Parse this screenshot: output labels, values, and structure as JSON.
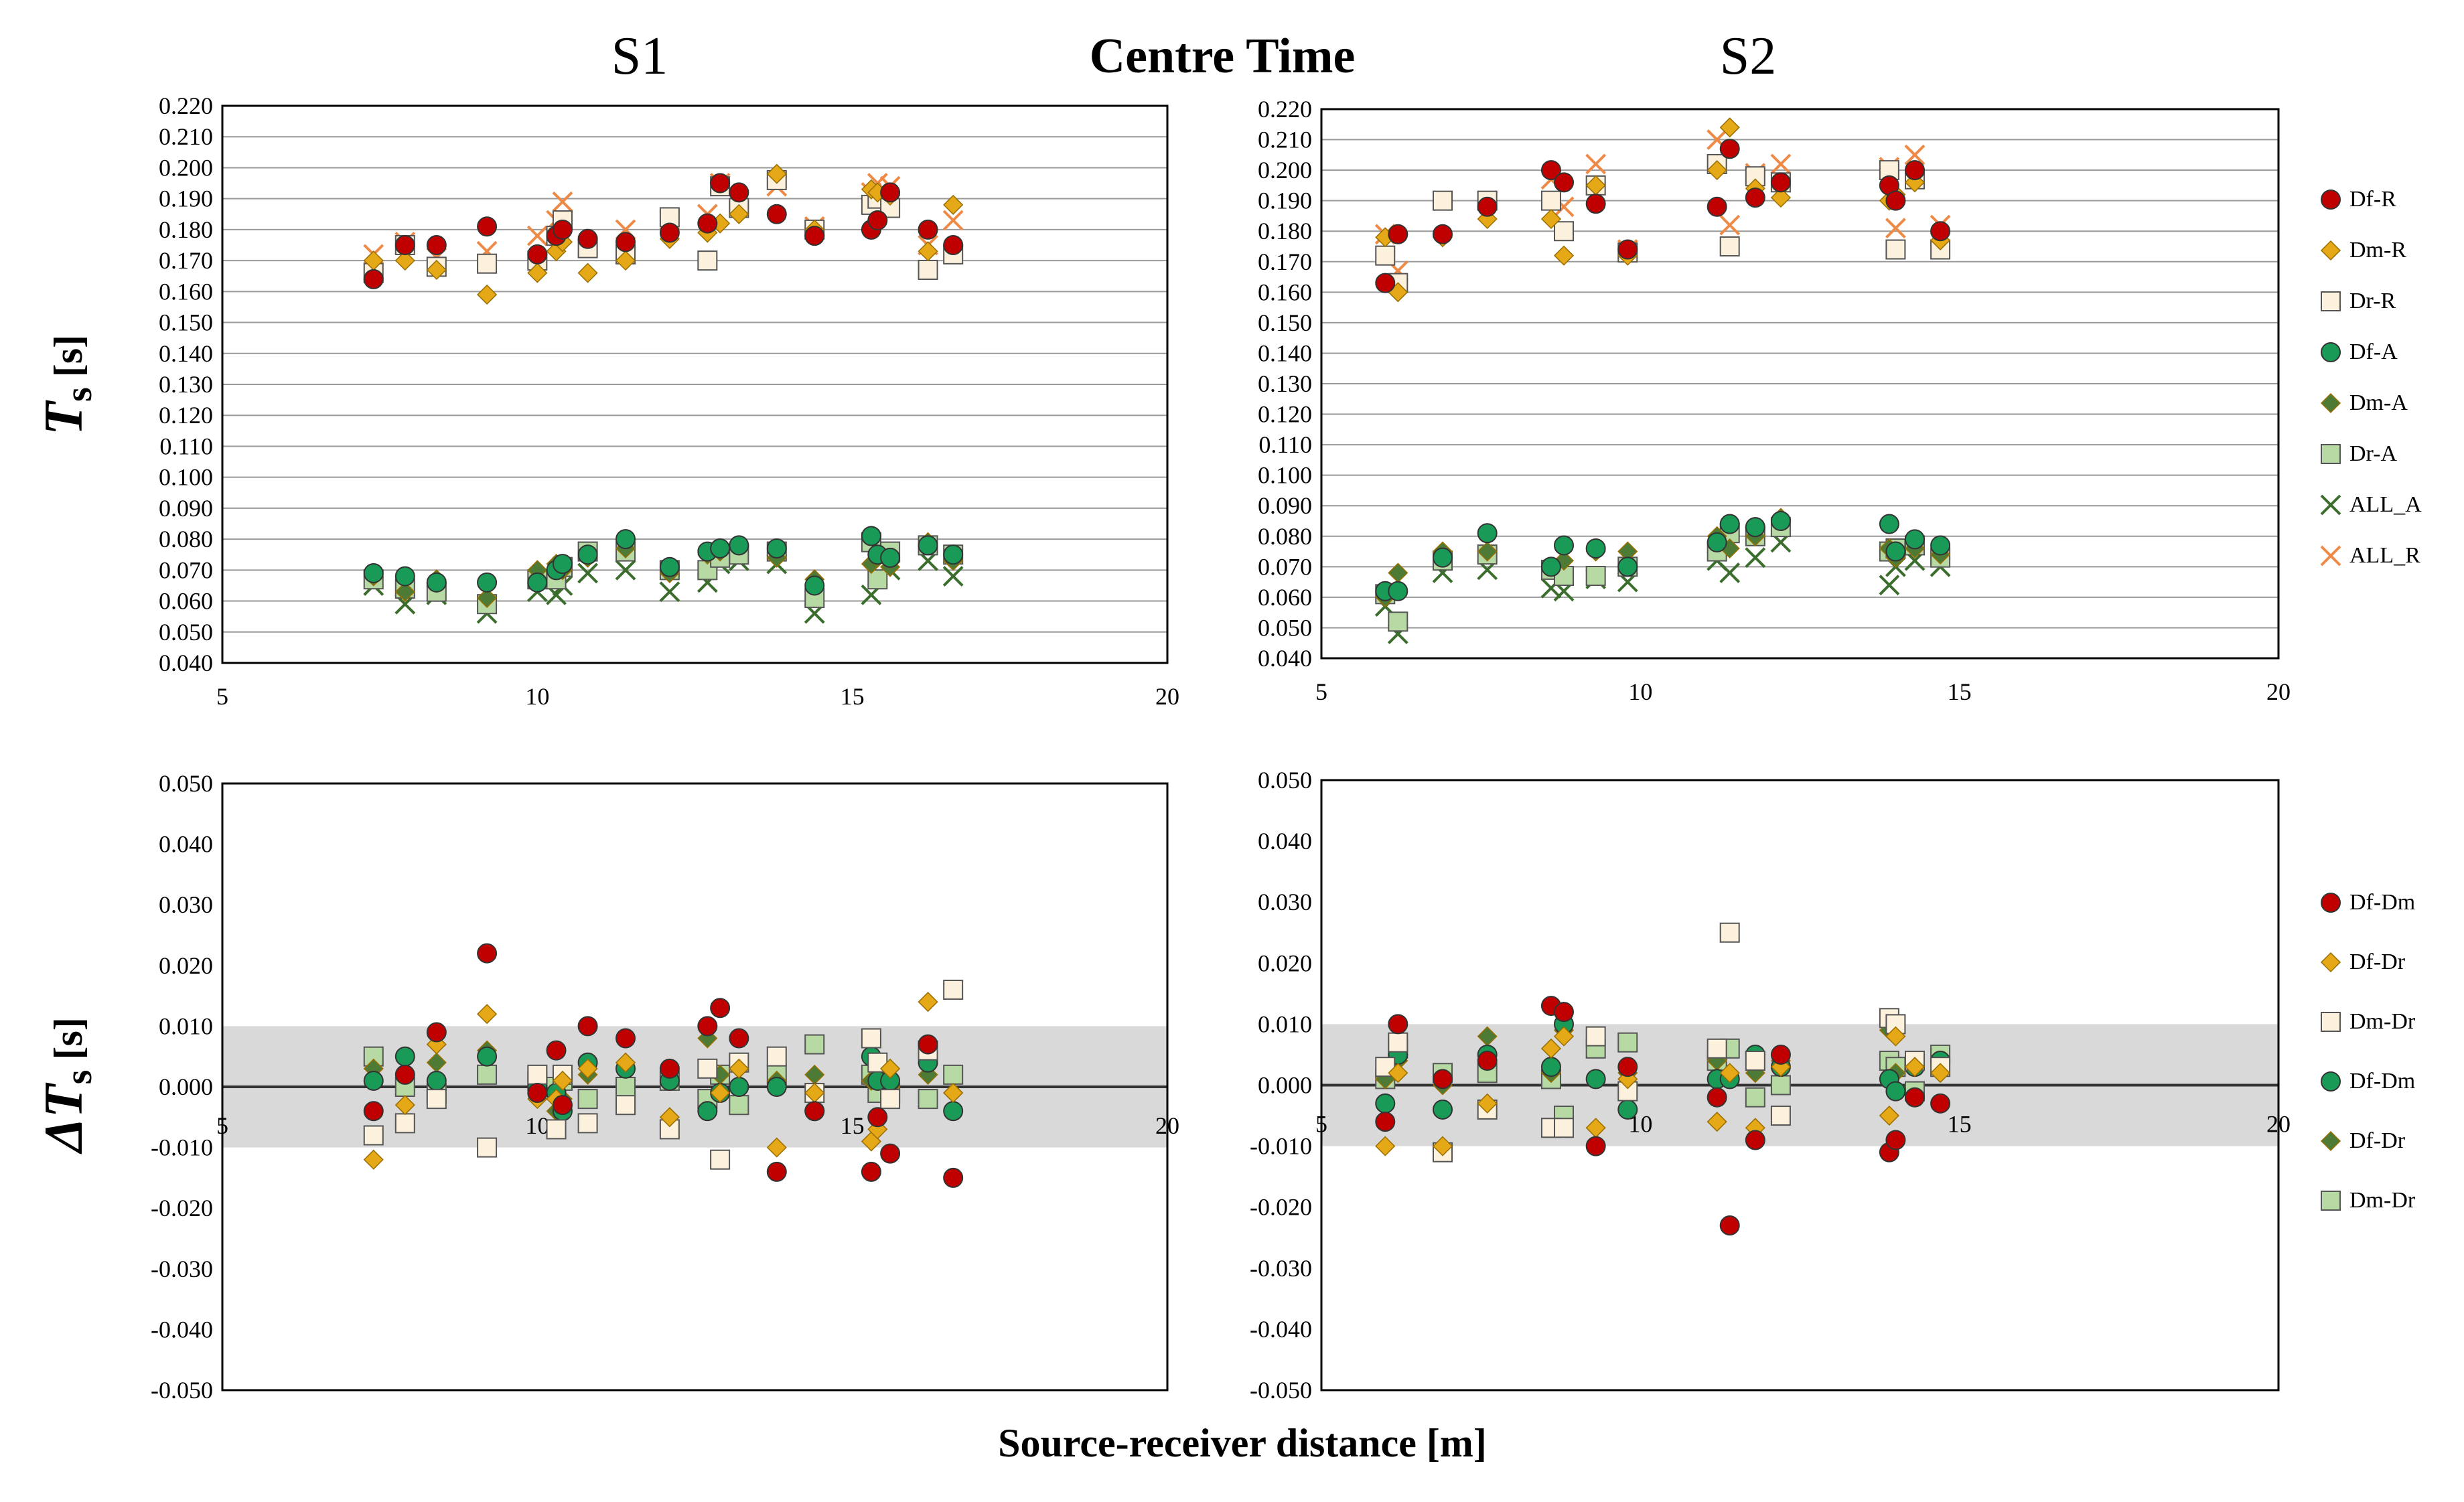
{
  "figure": {
    "main_title": "Centre Time",
    "panel_titles": [
      "S1",
      "S2"
    ],
    "top_ylabel_main": "T",
    "top_ylabel_sub": "s",
    "top_ylabel_unit": " [s]",
    "bottom_ylabel_main": "ΔT",
    "bottom_ylabel_sub": "s",
    "bottom_ylabel_unit": " [s]",
    "xlabel": "Source-receiver distance [m]"
  },
  "colors": {
    "Df": "#c00000",
    "Dm": "#e5a817",
    "Dr": "#fbf1dc",
    "Df_A": "#1a9a57",
    "Dm_A": "#4d7a35",
    "Dr_A": "#b7d9a4",
    "ALL_A": "#3b6e2c",
    "ALL_R": "#ee8a46",
    "band": "#d9d9d9"
  },
  "legend_top": [
    {
      "label": "Df-R",
      "marker": "circle",
      "color": "#c00000"
    },
    {
      "label": "Dm-R",
      "marker": "diamond",
      "color": "#e5a817"
    },
    {
      "label": "Dr-R",
      "marker": "square",
      "color": "#fbf1dc"
    },
    {
      "label": "Df-A",
      "marker": "circle",
      "color": "#1a9a57"
    },
    {
      "label": "Dm-A",
      "marker": "diamond",
      "color": "#4d7a35"
    },
    {
      "label": "Dr-A",
      "marker": "square",
      "color": "#b7d9a4"
    },
    {
      "label": "ALL_A",
      "marker": "x",
      "color": "#3b6e2c"
    },
    {
      "label": "ALL_R",
      "marker": "x",
      "color": "#ee8a46"
    }
  ],
  "legend_bottom": [
    {
      "label": "Df-Dm",
      "marker": "circle",
      "color": "#c00000"
    },
    {
      "label": "Df-Dr",
      "marker": "diamond",
      "color": "#e5a817"
    },
    {
      "label": "Dm-Dr",
      "marker": "square",
      "color": "#fbf1dc"
    },
    {
      "label": "Df-Dm",
      "marker": "circle",
      "color": "#1a9a57"
    },
    {
      "label": "Df-Dr",
      "marker": "diamond",
      "color": "#4d7a35"
    },
    {
      "label": "Dm-Dr",
      "marker": "square",
      "color": "#b7d9a4"
    }
  ],
  "chart_data": [
    {
      "panel": "S1-top",
      "type": "scatter",
      "xlim": [
        5,
        20
      ],
      "ylim": [
        0.04,
        0.22
      ],
      "xticks": [
        "5",
        "10",
        "15",
        "20"
      ],
      "yticks": [
        "0.040",
        "0.050",
        "0.060",
        "0.070",
        "0.080",
        "0.090",
        "0.100",
        "0.110",
        "0.120",
        "0.130",
        "0.140",
        "0.150",
        "0.160",
        "0.170",
        "0.180",
        "0.190",
        "0.200",
        "0.210",
        "0.220"
      ],
      "grid": "horizontal",
      "x": [
        7.4,
        7.9,
        8.4,
        9.2,
        10.0,
        10.3,
        10.4,
        10.8,
        11.4,
        12.1,
        12.7,
        12.9,
        13.2,
        13.8,
        14.4,
        15.3,
        15.4,
        15.6,
        16.2,
        16.6
      ],
      "series": [
        {
          "name": "Df-R",
          "values": [
            0.164,
            0.175,
            0.175,
            0.181,
            0.172,
            0.178,
            0.18,
            0.177,
            0.176,
            0.179,
            0.182,
            0.195,
            0.192,
            0.185,
            0.178,
            0.18,
            0.183,
            0.192,
            0.18,
            0.175
          ]
        },
        {
          "name": "Dm-R",
          "values": [
            0.17,
            0.17,
            0.167,
            0.159,
            0.166,
            0.173,
            0.176,
            0.166,
            0.17,
            0.177,
            0.179,
            0.182,
            0.185,
            0.198,
            0.18,
            0.193,
            0.192,
            0.191,
            0.173,
            0.188
          ]
        },
        {
          "name": "Dr-R",
          "values": [
            0.166,
            0.175,
            0.168,
            0.169,
            0.17,
            0.178,
            0.183,
            0.174,
            0.172,
            0.184,
            0.17,
            0.194,
            0.187,
            0.196,
            0.18,
            0.188,
            0.19,
            0.187,
            0.167,
            0.172
          ]
        },
        {
          "name": "Df-A",
          "values": [
            0.069,
            0.068,
            0.066,
            0.066,
            0.066,
            0.07,
            0.072,
            0.075,
            0.08,
            0.071,
            0.076,
            0.077,
            0.078,
            0.077,
            0.065,
            0.081,
            0.075,
            0.074,
            0.078,
            0.075
          ]
        },
        {
          "name": "Dm-A",
          "values": [
            0.068,
            0.063,
            0.067,
            0.061,
            0.07,
            0.072,
            0.07,
            0.074,
            0.077,
            0.069,
            0.075,
            0.076,
            0.078,
            0.074,
            0.067,
            0.072,
            0.074,
            0.071,
            0.079,
            0.073
          ]
        },
        {
          "name": "Dr-A",
          "values": [
            0.067,
            0.064,
            0.063,
            0.059,
            0.067,
            0.067,
            0.071,
            0.076,
            0.076,
            0.07,
            0.07,
            0.074,
            0.075,
            0.076,
            0.061,
            0.079,
            0.067,
            0.076,
            0.078,
            0.075
          ]
        },
        {
          "name": "ALL_A",
          "values": [
            0.065,
            0.059,
            0.062,
            0.056,
            0.063,
            0.062,
            0.065,
            0.069,
            0.07,
            0.063,
            0.066,
            0.072,
            0.073,
            0.072,
            0.056,
            0.062,
            0.068,
            0.07,
            0.073,
            0.068
          ]
        },
        {
          "name": "ALL_R",
          "values": [
            0.172,
            0.176,
            0.171,
            0.173,
            0.178,
            0.183,
            0.189,
            0.175,
            0.18,
            0.183,
            0.185,
            0.195,
            0.19,
            0.194,
            0.181,
            0.192,
            0.195,
            0.194,
            0.175,
            0.183
          ]
        }
      ]
    },
    {
      "panel": "S2-top",
      "type": "scatter",
      "xlim": [
        5,
        20
      ],
      "ylim": [
        0.04,
        0.22
      ],
      "xticks": [
        "5",
        "10",
        "15",
        "20"
      ],
      "yticks": [
        "0.040",
        "0.050",
        "0.060",
        "0.070",
        "0.080",
        "0.090",
        "0.100",
        "0.110",
        "0.120",
        "0.130",
        "0.140",
        "0.150",
        "0.160",
        "0.170",
        "0.180",
        "0.190",
        "0.200",
        "0.210",
        "0.220"
      ],
      "grid": "horizontal",
      "x": [
        6.0,
        6.2,
        6.9,
        7.6,
        8.6,
        8.8,
        9.3,
        9.8,
        11.2,
        11.4,
        11.8,
        12.2,
        13.9,
        14.0,
        14.3,
        14.7
      ],
      "series": [
        {
          "name": "Df-R",
          "values": [
            0.163,
            0.179,
            0.179,
            0.188,
            0.2,
            0.196,
            0.189,
            0.174,
            0.188,
            0.207,
            0.191,
            0.196,
            0.195,
            0.19,
            0.2,
            0.18
          ]
        },
        {
          "name": "Dm-R",
          "values": [
            0.178,
            0.16,
            0.178,
            0.184,
            0.184,
            0.172,
            0.195,
            0.172,
            0.2,
            0.214,
            0.194,
            0.191,
            0.19,
            0.192,
            0.196,
            0.177
          ]
        },
        {
          "name": "Dr-R",
          "values": [
            0.172,
            0.163,
            0.19,
            0.19,
            0.19,
            0.18,
            0.195,
            0.173,
            0.202,
            0.175,
            0.198,
            0.196,
            0.2,
            0.174,
            0.197,
            0.174
          ]
        },
        {
          "name": "Df-A",
          "values": [
            0.062,
            0.062,
            0.073,
            0.081,
            0.07,
            0.077,
            0.076,
            0.07,
            0.078,
            0.084,
            0.083,
            0.085,
            0.084,
            0.075,
            0.079,
            0.077
          ]
        },
        {
          "name": "Dm-A",
          "values": [
            0.06,
            0.068,
            0.075,
            0.075,
            0.07,
            0.072,
            0.075,
            0.075,
            0.08,
            0.076,
            0.08,
            0.086,
            0.076,
            0.073,
            0.076,
            0.074
          ]
        },
        {
          "name": "Dr-A",
          "values": [
            0.061,
            0.052,
            0.072,
            0.074,
            0.069,
            0.067,
            0.067,
            0.07,
            0.075,
            0.081,
            0.08,
            0.083,
            0.075,
            0.076,
            0.077,
            0.073
          ]
        },
        {
          "name": "ALL_A",
          "values": [
            0.057,
            0.048,
            0.068,
            0.069,
            0.063,
            0.062,
            0.066,
            0.065,
            0.072,
            0.068,
            0.073,
            0.078,
            0.064,
            0.07,
            0.072,
            0.07
          ]
        },
        {
          "name": "ALL_R",
          "values": [
            0.179,
            0.167,
            0.19,
            0.19,
            0.197,
            0.188,
            0.202,
            0.174,
            0.21,
            0.182,
            0.199,
            0.202,
            0.201,
            0.181,
            0.205,
            0.182
          ]
        }
      ]
    },
    {
      "panel": "S1-bottom",
      "type": "scatter",
      "xlim": [
        5,
        20
      ],
      "ylim": [
        -0.05,
        0.05
      ],
      "xticks": [
        "5",
        "10",
        "15",
        "20"
      ],
      "yticks": [
        "-0.050",
        "-0.040",
        "-0.030",
        "-0.020",
        "-0.010",
        "0.000",
        "0.010",
        "0.020",
        "0.030",
        "0.040",
        "0.050"
      ],
      "shaded_band": [
        -0.01,
        0.01
      ],
      "zero_line": true,
      "x": [
        7.4,
        7.9,
        8.4,
        9.2,
        10.0,
        10.3,
        10.4,
        10.8,
        11.4,
        12.1,
        12.7,
        12.9,
        13.2,
        13.8,
        14.4,
        15.3,
        15.4,
        15.6,
        16.2,
        16.6
      ],
      "series": [
        {
          "name": "Df-Dm",
          "values": [
            -0.004,
            0.002,
            0.009,
            0.022,
            -0.001,
            0.006,
            -0.003,
            0.01,
            0.008,
            0.003,
            0.01,
            0.013,
            0.008,
            -0.014,
            -0.004,
            -0.014,
            -0.005,
            -0.011,
            0.007,
            -0.015
          ]
        },
        {
          "name": "Df-Dr",
          "values": [
            -0.012,
            -0.003,
            0.007,
            0.012,
            -0.002,
            -0.002,
            0.001,
            0.003,
            0.004,
            -0.005,
            0.01,
            -0.001,
            0.003,
            -0.01,
            -0.001,
            -0.009,
            -0.007,
            0.003,
            0.014,
            -0.001
          ]
        },
        {
          "name": "Dm-Dr",
          "values": [
            -0.008,
            -0.006,
            -0.002,
            -0.01,
            0.002,
            -0.007,
            0.002,
            -0.006,
            -0.003,
            -0.007,
            0.003,
            -0.012,
            0.004,
            0.005,
            -0.001,
            0.008,
            0.004,
            -0.002,
            0.006,
            0.016
          ]
        },
        {
          "name": "Df-Dm",
          "values": [
            0.001,
            0.005,
            0.001,
            0.005,
            0.0,
            -0.001,
            -0.004,
            0.004,
            0.003,
            0.001,
            -0.004,
            -0.001,
            0.0,
            0.0,
            -0.004,
            0.005,
            0.001,
            0.001,
            0.004,
            -0.004
          ]
        },
        {
          "name": "Df-Dr",
          "values": [
            0.003,
            0.005,
            0.004,
            0.006,
            0.001,
            -0.004,
            -0.002,
            0.002,
            0.004,
            0.001,
            0.008,
            0.002,
            0.003,
            0.001,
            0.002,
            0.001,
            0.002,
            0.0,
            0.002,
            -0.001
          ]
        },
        {
          "name": "Dm-Dr",
          "values": [
            0.005,
            0.0,
            -0.001,
            0.002,
            0.001,
            0.0,
            0.001,
            -0.002,
            0.0,
            0.001,
            -0.002,
            0.002,
            -0.003,
            0.002,
            0.007,
            0.002,
            -0.001,
            -0.001,
            -0.002,
            0.002
          ]
        }
      ]
    },
    {
      "panel": "S2-bottom",
      "type": "scatter",
      "xlim": [
        5,
        20
      ],
      "ylim": [
        -0.05,
        0.05
      ],
      "xticks": [
        "5",
        "10",
        "15",
        "20"
      ],
      "yticks": [
        "-0.050",
        "-0.040",
        "-0.030",
        "-0.020",
        "-0.010",
        "0.000",
        "0.010",
        "0.020",
        "0.030",
        "0.040",
        "0.050"
      ],
      "shaded_band": [
        -0.01,
        0.01
      ],
      "zero_line": true,
      "x": [
        6.0,
        6.2,
        6.9,
        7.6,
        8.6,
        8.8,
        9.3,
        9.8,
        11.2,
        11.4,
        11.8,
        12.2,
        13.9,
        14.0,
        14.3,
        14.7
      ],
      "series": [
        {
          "name": "Df-Dm",
          "values": [
            -0.006,
            0.01,
            0.001,
            0.004,
            0.013,
            0.012,
            -0.01,
            0.003,
            -0.002,
            -0.023,
            -0.009,
            0.005,
            -0.011,
            -0.009,
            -0.002,
            -0.003
          ]
        },
        {
          "name": "Df-Dr",
          "values": [
            -0.01,
            0.002,
            -0.01,
            -0.003,
            0.006,
            0.008,
            -0.007,
            0.001,
            -0.006,
            0.002,
            -0.007,
            0.003,
            -0.005,
            0.008,
            0.003,
            0.002
          ]
        },
        {
          "name": "Dm-Dr",
          "values": [
            0.003,
            0.007,
            -0.011,
            -0.004,
            -0.007,
            -0.007,
            0.008,
            -0.001,
            0.006,
            0.025,
            0.004,
            -0.005,
            0.011,
            0.01,
            0.004,
            0.003
          ]
        },
        {
          "name": "Df-Dm",
          "values": [
            -0.003,
            0.005,
            -0.004,
            0.005,
            0.003,
            0.01,
            0.001,
            -0.004,
            0.001,
            0.001,
            0.005,
            0.003,
            0.001,
            -0.001,
            0.003,
            0.004
          ]
        },
        {
          "name": "Df-Dr",
          "values": [
            0.001,
            0.004,
            0.0,
            0.008,
            0.002,
            0.009,
            0.008,
            0.002,
            0.004,
            0.001,
            0.002,
            0.004,
            0.009,
            0.002,
            0.003,
            0.004
          ]
        },
        {
          "name": "Dm-Dr",
          "values": [
            0.001,
            0.006,
            0.002,
            0.002,
            0.001,
            -0.005,
            0.006,
            0.007,
            0.004,
            0.006,
            -0.002,
            0.0,
            0.004,
            0.003,
            -0.001,
            0.005
          ]
        }
      ]
    }
  ]
}
